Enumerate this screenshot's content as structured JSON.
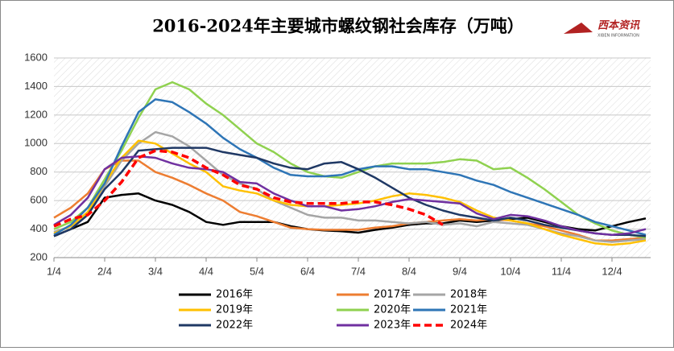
{
  "chart_data": {
    "type": "line",
    "title": "2016-2024年主要城市螺纹钢社会库存（万吨）",
    "logo": "西本资讯",
    "logo_subtitle": "XIBEN INFORMATION",
    "categories": [
      "1/4",
      null,
      null,
      "2/4",
      null,
      null,
      "3/4",
      null,
      null,
      "4/4",
      null,
      null,
      "5/4",
      null,
      null,
      "6/4",
      null,
      null,
      "7/4",
      null,
      null,
      "8/4",
      null,
      null,
      "9/4",
      null,
      null,
      "10/4",
      null,
      null,
      "11/4",
      null,
      null,
      "12/4",
      null,
      null
    ],
    "ylim": [
      200,
      1600
    ],
    "yticks": [
      200,
      400,
      600,
      800,
      1000,
      1200,
      1400,
      1600
    ],
    "grid": true,
    "legend": "bottom",
    "series": [
      {
        "name": "2016年",
        "color": "#000000",
        "values": [
          350,
          400,
          450,
          620,
          640,
          650,
          600,
          570,
          520,
          450,
          430,
          450,
          450,
          450,
          420,
          400,
          390,
          385,
          375,
          395,
          410,
          430,
          440,
          440,
          460,
          450,
          460,
          470,
          480,
          450,
          420,
          400,
          390,
          420,
          450,
          475
        ]
      },
      {
        "name": "2017年",
        "color": "#ed7d31",
        "values": [
          480,
          550,
          650,
          820,
          880,
          880,
          800,
          760,
          710,
          650,
          600,
          520,
          490,
          450,
          410,
          400,
          395,
          395,
          395,
          410,
          420,
          440,
          450,
          460,
          470,
          460,
          470,
          460,
          440,
          420,
          390,
          360,
          320,
          320,
          330,
          340
        ]
      },
      {
        "name": "2018年",
        "color": "#a5a5a5",
        "values": [
          380,
          420,
          500,
          700,
          880,
          1000,
          1080,
          1050,
          980,
          880,
          780,
          720,
          680,
          600,
          550,
          500,
          480,
          480,
          460,
          460,
          450,
          440,
          450,
          430,
          440,
          420,
          450,
          440,
          430,
          400,
          370,
          350,
          320,
          310,
          320,
          330
        ]
      },
      {
        "name": "2019年",
        "color": "#ffc000",
        "values": [
          370,
          420,
          520,
          720,
          900,
          1020,
          1000,
          930,
          860,
          800,
          700,
          670,
          650,
          600,
          570,
          560,
          560,
          570,
          580,
          600,
          630,
          650,
          640,
          620,
          590,
          530,
          480,
          460,
          440,
          400,
          360,
          330,
          300,
          290,
          300,
          320
        ]
      },
      {
        "name": "2020年",
        "color": "#8fd14f",
        "values": [
          400,
          450,
          550,
          750,
          950,
          1180,
          1380,
          1430,
          1380,
          1280,
          1200,
          1100,
          1000,
          940,
          860,
          800,
          770,
          760,
          800,
          840,
          860,
          860,
          860,
          870,
          890,
          880,
          820,
          830,
          760,
          680,
          590,
          500,
          440,
          390,
          360,
          340
        ]
      },
      {
        "name": "2021年",
        "color": "#2e75b6",
        "values": [
          360,
          430,
          550,
          720,
          980,
          1220,
          1310,
          1290,
          1220,
          1140,
          1040,
          960,
          900,
          830,
          780,
          770,
          770,
          780,
          820,
          840,
          840,
          820,
          820,
          800,
          780,
          740,
          710,
          660,
          620,
          580,
          540,
          500,
          450,
          420,
          390,
          360
        ]
      },
      {
        "name": "2022年",
        "color": "#1f3864",
        "values": [
          350,
          400,
          500,
          680,
          800,
          950,
          960,
          970,
          970,
          970,
          940,
          920,
          900,
          860,
          830,
          820,
          860,
          870,
          820,
          760,
          690,
          620,
          570,
          530,
          500,
          480,
          460,
          480,
          460,
          430,
          410,
          390,
          370,
          360,
          360,
          350
        ]
      },
      {
        "name": "2023年",
        "color": "#7030a0",
        "values": [
          430,
          500,
          620,
          820,
          900,
          910,
          900,
          860,
          830,
          820,
          800,
          730,
          720,
          650,
          600,
          560,
          560,
          530,
          540,
          560,
          590,
          610,
          600,
          590,
          580,
          510,
          470,
          500,
          490,
          460,
          420,
          390,
          370,
          360,
          370,
          400
        ]
      },
      {
        "name": "2024年",
        "color": "#ff0000",
        "dashed": true,
        "values": [
          420,
          470,
          500,
          600,
          730,
          900,
          950,
          940,
          900,
          830,
          780,
          710,
          680,
          620,
          590,
          580,
          580,
          580,
          590,
          590,
          570,
          540,
          500,
          430,
          null,
          null,
          null,
          null,
          null,
          null,
          null,
          null,
          null,
          null,
          null,
          null
        ]
      }
    ]
  }
}
